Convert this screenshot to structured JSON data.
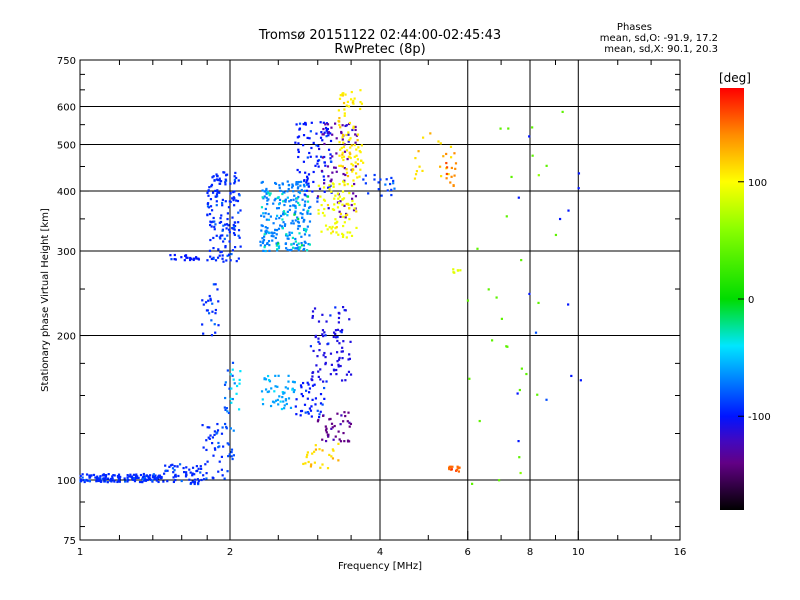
{
  "header": {
    "title": "Tromsø 20151122 02:44:00-02:45:43",
    "subtitle": "RwPretec (8p)"
  },
  "phases_box": {
    "heading": "Phases",
    "line_o": "mean, sd,O: -91.9, 17.2",
    "line_x": "mean, sd,X: 90.1, 20.3"
  },
  "colorbar": {
    "unit_label": "[deg]",
    "ticks": [
      {
        "label": "100",
        "value": 100
      },
      {
        "label": "0",
        "value": 0
      },
      {
        "label": "-100",
        "value": -100
      }
    ],
    "range": [
      -180,
      180
    ]
  },
  "chart_data": {
    "type": "scatter",
    "title": "Tromsø 20151122 02:44:00-02:45:43",
    "subtitle": "RwPretec (8p)",
    "xlabel": "Frequency [MHz]",
    "ylabel": "Stationary phase Virtual Height [km]",
    "x_scale": "log",
    "y_scale": "log",
    "xlim": [
      1,
      16
    ],
    "ylim": [
      75,
      750
    ],
    "x_ticks": [
      {
        "value": 1,
        "label": "1"
      },
      {
        "value": 2,
        "label": "2"
      },
      {
        "value": 4,
        "label": "4"
      },
      {
        "value": 6,
        "label": "6"
      },
      {
        "value": 8,
        "label": "8"
      },
      {
        "value": 10,
        "label": "10"
      },
      {
        "value": 16,
        "label": "16"
      }
    ],
    "y_ticks": [
      {
        "value": 75,
        "label": "75"
      },
      {
        "value": 100,
        "label": "100"
      },
      {
        "value": 200,
        "label": "200"
      },
      {
        "value": 300,
        "label": "300"
      },
      {
        "value": 400,
        "label": "400"
      },
      {
        "value": 500,
        "label": "500"
      },
      {
        "value": 600,
        "label": "600"
      },
      {
        "value": 750,
        "label": "750"
      }
    ],
    "x_grid": [
      2,
      4,
      6,
      8,
      10
    ],
    "y_grid": [
      100,
      200,
      300,
      400,
      500,
      600
    ],
    "color_scale": "phase [deg], rainbow -180 (black) to 180 (red)",
    "point_groups": [
      {
        "x": [
          1.0,
          1.45
        ],
        "y": [
          99,
          103
        ],
        "phase": -95,
        "n": 160
      },
      {
        "x": [
          1.45,
          1.75
        ],
        "y": [
          98,
          108
        ],
        "phase": -95,
        "n": 60
      },
      {
        "x": [
          1.75,
          1.95
        ],
        "y": [
          100,
          135
        ],
        "phase": -95,
        "n": 40
      },
      {
        "x": [
          1.95,
          2.05
        ],
        "y": [
          100,
          180
        ],
        "phase": -85,
        "n": 30
      },
      {
        "x": [
          2.0,
          2.1
        ],
        "y": [
          140,
          170
        ],
        "phase": -40,
        "n": 12
      },
      {
        "x": [
          1.75,
          1.9
        ],
        "y": [
          200,
          260
        ],
        "phase": -95,
        "n": 25
      },
      {
        "x": [
          1.5,
          1.75
        ],
        "y": [
          285,
          295
        ],
        "phase": -100,
        "n": 20
      },
      {
        "x": [
          1.8,
          2.1
        ],
        "y": [
          285,
          440
        ],
        "phase": -95,
        "n": 160
      },
      {
        "x": [
          2.3,
          2.9
        ],
        "y": [
          300,
          420
        ],
        "phase": -70,
        "n": 220
      },
      {
        "x": [
          2.3,
          2.9
        ],
        "y": [
          300,
          400
        ],
        "phase": -30,
        "n": 40
      },
      {
        "x": [
          2.7,
          3.2
        ],
        "y": [
          380,
          560
        ],
        "phase": -100,
        "n": 90
      },
      {
        "x": [
          3.0,
          3.6
        ],
        "y": [
          350,
          560
        ],
        "phase": -130,
        "n": 70
      },
      {
        "x": [
          3.0,
          3.6
        ],
        "y": [
          320,
          420
        ],
        "phase": 95,
        "n": 80
      },
      {
        "x": [
          3.3,
          3.7
        ],
        "y": [
          420,
          650
        ],
        "phase": 105,
        "n": 90
      },
      {
        "x": [
          3.7,
          4.3
        ],
        "y": [
          390,
          440
        ],
        "phase": -90,
        "n": 20
      },
      {
        "x": [
          4.6,
          5.6
        ],
        "y": [
          420,
          540
        ],
        "phase": 110,
        "n": 18
      },
      {
        "x": [
          5.4,
          5.7
        ],
        "y": [
          410,
          480
        ],
        "phase": 140,
        "n": 14
      },
      {
        "x": [
          2.3,
          2.7
        ],
        "y": [
          140,
          165
        ],
        "phase": -60,
        "n": 50
      },
      {
        "x": [
          2.7,
          3.1
        ],
        "y": [
          135,
          160
        ],
        "phase": -100,
        "n": 40
      },
      {
        "x": [
          2.9,
          3.5
        ],
        "y": [
          160,
          230
        ],
        "phase": -110,
        "n": 90
      },
      {
        "x": [
          3.0,
          3.5
        ],
        "y": [
          120,
          140
        ],
        "phase": -140,
        "n": 40
      },
      {
        "x": [
          2.8,
          3.3
        ],
        "y": [
          105,
          120
        ],
        "phase": 110,
        "n": 25
      },
      {
        "x": [
          5.5,
          5.8
        ],
        "y": [
          104,
          107
        ],
        "phase": 150,
        "n": 15
      },
      {
        "x": [
          5.6,
          5.8
        ],
        "y": [
          270,
          275
        ],
        "phase": 90,
        "n": 6
      },
      {
        "x": [
          6.0,
          9.5
        ],
        "y": [
          95,
          600
        ],
        "phase": 40,
        "n": 30
      },
      {
        "x": [
          7.5,
          10.5
        ],
        "y": [
          120,
          580
        ],
        "phase": -100,
        "n": 14
      }
    ]
  }
}
